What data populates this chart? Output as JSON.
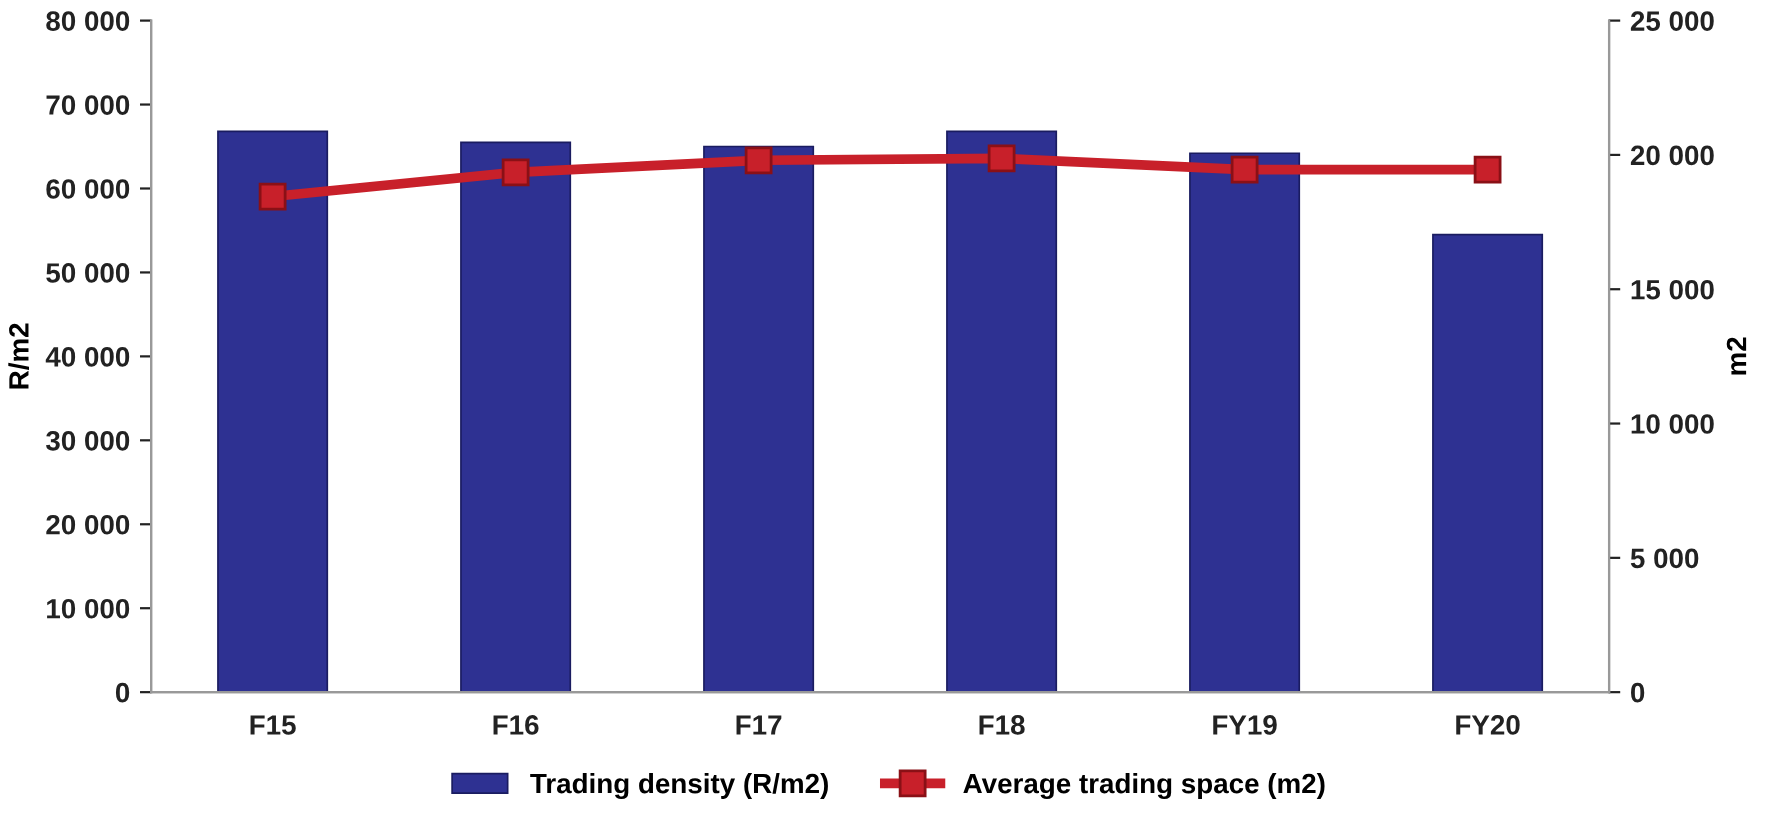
{
  "chart_data": {
    "type": "bar",
    "categories": [
      "F15",
      "F16",
      "F17",
      "F18",
      "FY19",
      "FY20"
    ],
    "series": [
      {
        "name": "Trading density (R/m2)",
        "color": "#2e3192",
        "values": [
          66800,
          65500,
          65000,
          66800,
          64200,
          54500
        ]
      },
      {
        "name": "Average trading space (m2)",
        "type": "line",
        "axis": "y2",
        "color": "#c8202a",
        "marker": "square",
        "values": [
          18450,
          19350,
          19800,
          19870,
          19450,
          19450
        ]
      }
    ],
    "ylabel": "R/m2",
    "y2label": "m2",
    "ylim": [
      0,
      80000
    ],
    "yticks": [
      {
        "value": 0,
        "label": "0"
      },
      {
        "value": 10000,
        "label": "10 000"
      },
      {
        "value": 20000,
        "label": "20 000"
      },
      {
        "value": 30000,
        "label": "30 000"
      },
      {
        "value": 40000,
        "label": "40 000"
      },
      {
        "value": 50000,
        "label": "50 000"
      },
      {
        "value": 60000,
        "label": "60 000"
      },
      {
        "value": 70000,
        "label": "70 000"
      },
      {
        "value": 80000,
        "label": "80 000"
      }
    ],
    "y2lim": [
      0,
      25000
    ],
    "y2ticks": [
      {
        "value": 0,
        "label": "0"
      },
      {
        "value": 5000,
        "label": "5 000"
      },
      {
        "value": 10000,
        "label": "10 000"
      },
      {
        "value": 15000,
        "label": "15 000"
      },
      {
        "value": 20000,
        "label": "20 000"
      },
      {
        "value": 25000,
        "label": "25 000"
      }
    ],
    "grid": false,
    "legend": "bottom"
  }
}
